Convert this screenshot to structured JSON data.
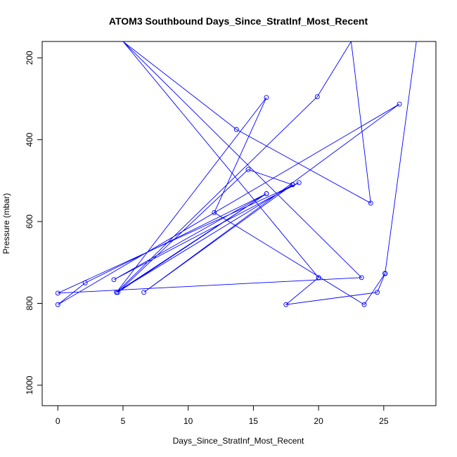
{
  "chart_data": {
    "type": "line",
    "title": "ATOM3 Southbound Days_Since_StratInf_Most_Recent",
    "xlabel": "Days_Since_StratInf_Most_Recent",
    "ylabel": "Pressure (mbar)",
    "xlim": [
      -1.2,
      29.0
    ],
    "ylim": [
      1050,
      160
    ],
    "y_reversed": true,
    "x_ticks": [
      "0",
      "5",
      "10",
      "15",
      "20",
      "25"
    ],
    "y_ticks": [
      "200",
      "400",
      "600",
      "800",
      "1000"
    ],
    "grid": false,
    "line_color": "#0000ff",
    "marker": "open-circle",
    "series": [
      {
        "x": [
          5.0,
          20.0,
          20.0,
          17.5,
          24.5,
          25.1,
          25.1,
          25.1,
          27.5,
          27.5,
          25.1,
          25.1,
          23.5,
          12.0,
          16.0,
          4.5,
          16.0,
          4.3,
          18.5,
          0.0,
          23.3,
          5.0,
          13.7,
          24.0,
          22.5,
          19.9,
          4.5,
          18.0,
          6.6,
          26.2,
          0.0,
          2.1,
          16.0,
          4.6,
          14.6,
          18.0
        ],
        "y": [
          160,
          737,
          737,
          803,
          773,
          727,
          727,
          727,
          160,
          160,
          727,
          727,
          803,
          578,
          297,
          773,
          532,
          742,
          505,
          775,
          737,
          160,
          375,
          555,
          160,
          295,
          773,
          510,
          773,
          313,
          803,
          750,
          532,
          773,
          473,
          510
        ]
      }
    ]
  }
}
